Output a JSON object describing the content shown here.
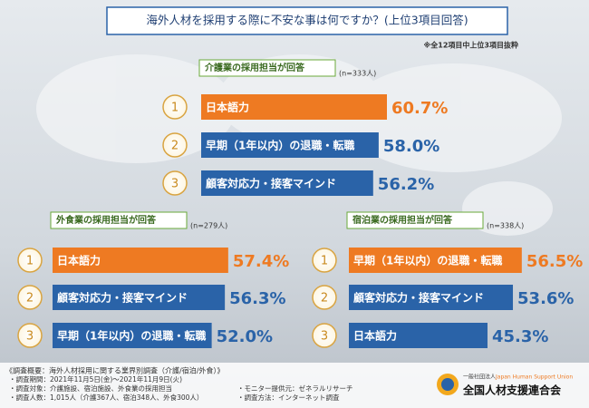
{
  "title": "海外人材を採用する際に不安な事は何ですか？(上位3項目回答)",
  "note": "※全12項目中上位3項目抜粋",
  "chart_data": [
    {
      "type": "bar",
      "title": "介護業の採用担当が回答",
      "subtitle": "(n=333人)",
      "ranks": [
        1,
        2,
        3
      ],
      "categories": [
        "日本語力",
        "早期（1年以内）の退職・転職",
        "顧客対応力・接客マインド"
      ],
      "values": [
        60.7,
        58.0,
        56.2
      ],
      "value_labels": [
        "60.7%",
        "58.0%",
        "56.2%"
      ],
      "colors": [
        "#ee7a22",
        "#2a63a8",
        "#2a63a8"
      ]
    },
    {
      "type": "bar",
      "title": "外食業の採用担当が回答",
      "subtitle": "(n=279人)",
      "ranks": [
        1,
        2,
        3
      ],
      "categories": [
        "日本語力",
        "顧客対応力・接客マインド",
        "早期（1年以内）の退職・転職"
      ],
      "values": [
        57.4,
        56.3,
        52.0
      ],
      "value_labels": [
        "57.4%",
        "56.3%",
        "52.0%"
      ],
      "colors": [
        "#ee7a22",
        "#2a63a8",
        "#2a63a8"
      ]
    },
    {
      "type": "bar",
      "title": "宿泊業の採用担当が回答",
      "subtitle": "(n=338人)",
      "ranks": [
        1,
        2,
        3
      ],
      "categories": [
        "早期（1年以内）の退職・転職",
        "顧客対応力・接客マインド",
        "日本語力"
      ],
      "values": [
        56.5,
        53.6,
        45.3
      ],
      "value_labels": [
        "56.5%",
        "53.6%",
        "45.3%"
      ],
      "colors": [
        "#ee7a22",
        "#2a63a8",
        "#2a63a8"
      ]
    }
  ],
  "footer": {
    "heading": "《調査概要：海外人材採用に関する業界別調査（介護/宿泊/外食）》",
    "items": [
      "・調査期間：2021年11月5日(金)～2021年11月9日(火)",
      "・調査対象：介護施設、宿泊施設、外食業の採用担当",
      "・調査人数：1,015人（介護367人、宿泊348人、外食300人）",
      "・モニター提供元：ゼネラルリサーチ",
      "・調査方法：インターネット調査"
    ],
    "org_type": "一般社団法人",
    "org_en": "Japan Human Support Union",
    "org_name": "全国人材支援連合会"
  }
}
